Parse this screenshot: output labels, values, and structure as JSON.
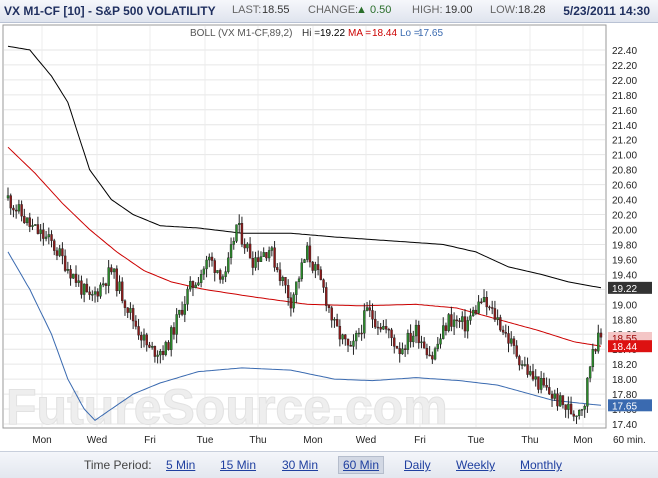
{
  "header": {
    "symbol": "VX M1-CF [10] - S&P 500 VOLATILITY",
    "last_label": "LAST:",
    "last_value": "18.55",
    "change_label": "CHANGE:",
    "change_value": "0.50",
    "high_label": "HIGH:",
    "high_value": "19.00",
    "low_label": "LOW:",
    "low_value": "18.28",
    "date_time": "5/23/2011 14:30"
  },
  "indicator": {
    "name": "BOLL (VX M1-CF,89,2)",
    "hi_label": "Hi =",
    "hi_value": "19.22",
    "ma_label": "MA =",
    "ma_value": "18.44",
    "lo_label": "Lo =",
    "lo_value": "17.65"
  },
  "watermark": "FutureSource.com",
  "footer": {
    "label": "Time Period:",
    "options": [
      "5 Min",
      "15 Min",
      "30 Min",
      "60 Min",
      "Daily",
      "Weekly",
      "Monthly"
    ],
    "selected": "60 Min"
  },
  "colors": {
    "upper_band": "#000000",
    "ma": "#cc0000",
    "lower_band": "#3a6ab0",
    "candle_up": "#2a8a2a",
    "candle_down": "#8a1a1a"
  },
  "chart_data": {
    "type": "candlestick",
    "x_labels": [
      "Mon",
      "Wed",
      "Fri",
      "Tue",
      "Thu",
      "Mon",
      "Wed",
      "Fri",
      "Tue",
      "Thu",
      "Mon"
    ],
    "x_unit": "60 min.",
    "y_ticks": [
      "17.40",
      "17.60",
      "17.80",
      "18.00",
      "18.20",
      "18.40",
      "18.60",
      "18.80",
      "19.00",
      "19.20",
      "19.40",
      "19.60",
      "19.80",
      "20.00",
      "20.20",
      "20.40",
      "20.60",
      "20.80",
      "21.00",
      "21.20",
      "21.40",
      "21.60",
      "21.80",
      "22.00",
      "22.20",
      "22.40"
    ],
    "ylim": [
      17.36,
      22.72
    ],
    "grid": true,
    "price_path": [
      [
        0,
        20.42
      ],
      [
        8,
        20.05
      ],
      [
        16,
        19.82
      ],
      [
        22,
        19.5
      ],
      [
        30,
        19.05
      ],
      [
        38,
        19.45
      ],
      [
        46,
        18.8
      ],
      [
        52,
        18.38
      ],
      [
        58,
        18.4
      ],
      [
        66,
        19.15
      ],
      [
        74,
        19.6
      ],
      [
        80,
        19.35
      ],
      [
        84,
        20.05
      ],
      [
        90,
        19.6
      ],
      [
        96,
        19.75
      ],
      [
        104,
        19.05
      ],
      [
        110,
        19.7
      ],
      [
        116,
        19.2
      ],
      [
        120,
        18.7
      ],
      [
        126,
        18.35
      ],
      [
        132,
        18.9
      ],
      [
        138,
        18.7
      ],
      [
        144,
        18.4
      ],
      [
        150,
        18.65
      ],
      [
        156,
        18.3
      ],
      [
        162,
        18.8
      ],
      [
        168,
        18.72
      ],
      [
        174,
        19.05
      ],
      [
        180,
        18.8
      ],
      [
        186,
        18.4
      ],
      [
        192,
        18.05
      ],
      [
        198,
        17.85
      ],
      [
        204,
        17.65
      ],
      [
        208,
        17.55
      ],
      [
        212,
        17.7
      ],
      [
        215,
        18.45
      ],
      [
        218,
        18.55
      ]
    ],
    "series": [
      {
        "name": "Hi",
        "values": [
          [
            0,
            22.45
          ],
          [
            8,
            22.4
          ],
          [
            16,
            22.05
          ],
          [
            22,
            21.7
          ],
          [
            30,
            20.8
          ],
          [
            38,
            20.4
          ],
          [
            46,
            20.2
          ],
          [
            56,
            20.05
          ],
          [
            70,
            20.02
          ],
          [
            86,
            19.95
          ],
          [
            104,
            19.95
          ],
          [
            120,
            19.9
          ],
          [
            140,
            19.85
          ],
          [
            160,
            19.8
          ],
          [
            172,
            19.7
          ],
          [
            184,
            19.5
          ],
          [
            196,
            19.4
          ],
          [
            206,
            19.3
          ],
          [
            218,
            19.22
          ]
        ]
      },
      {
        "name": "MA",
        "values": [
          [
            0,
            21.1
          ],
          [
            10,
            20.75
          ],
          [
            20,
            20.35
          ],
          [
            30,
            20.0
          ],
          [
            40,
            19.7
          ],
          [
            50,
            19.45
          ],
          [
            60,
            19.3
          ],
          [
            72,
            19.2
          ],
          [
            90,
            19.1
          ],
          [
            110,
            19.0
          ],
          [
            130,
            18.98
          ],
          [
            150,
            19.0
          ],
          [
            165,
            18.95
          ],
          [
            180,
            18.8
          ],
          [
            195,
            18.65
          ],
          [
            208,
            18.5
          ],
          [
            218,
            18.44
          ]
        ]
      },
      {
        "name": "Lo",
        "values": [
          [
            0,
            19.7
          ],
          [
            8,
            19.2
          ],
          [
            16,
            18.6
          ],
          [
            22,
            18.0
          ],
          [
            28,
            17.6
          ],
          [
            32,
            17.45
          ],
          [
            38,
            17.6
          ],
          [
            46,
            17.8
          ],
          [
            56,
            17.95
          ],
          [
            70,
            18.1
          ],
          [
            86,
            18.15
          ],
          [
            104,
            18.12
          ],
          [
            120,
            18.0
          ],
          [
            134,
            17.98
          ],
          [
            150,
            18.02
          ],
          [
            166,
            17.98
          ],
          [
            180,
            17.92
          ],
          [
            190,
            17.82
          ],
          [
            200,
            17.72
          ],
          [
            210,
            17.68
          ],
          [
            218,
            17.65
          ]
        ]
      }
    ],
    "current_labels": [
      {
        "series": "Hi",
        "value": "19.22"
      },
      {
        "series": "last",
        "value": "18.55"
      },
      {
        "series": "MA",
        "value": "18.44"
      },
      {
        "series": "Lo",
        "value": "17.65"
      }
    ]
  }
}
